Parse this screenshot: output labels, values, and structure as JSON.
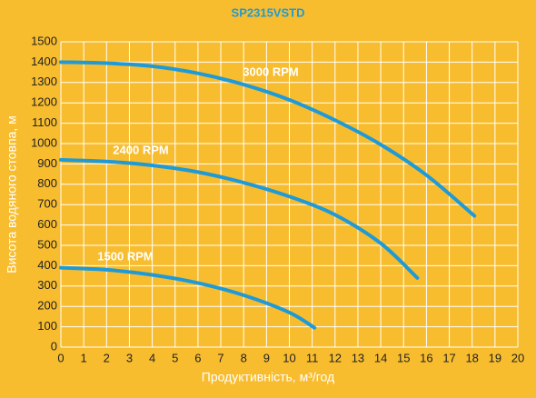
{
  "chart_data": {
    "type": "line",
    "title": "SP2315VSTD",
    "x_label": "Продуктивність, м³/год",
    "y_label": "Висота водяного стовпа, м",
    "xlim": [
      0,
      20
    ],
    "ylim": [
      0,
      1500
    ],
    "xticks": [
      0,
      1,
      2,
      3,
      4,
      5,
      6,
      7,
      8,
      9,
      10,
      11,
      12,
      13,
      14,
      15,
      16,
      17,
      18,
      19,
      20
    ],
    "yticks": [
      0,
      100,
      200,
      300,
      400,
      500,
      600,
      700,
      800,
      900,
      1000,
      1100,
      1200,
      1300,
      1400,
      1500
    ],
    "grid": true,
    "series": [
      {
        "name": "3000 RPM",
        "color": "#1f9ad6",
        "x": [
          0,
          2,
          4,
          6,
          8,
          10,
          12,
          14,
          16,
          18.1
        ],
        "values": [
          1400,
          1395,
          1380,
          1345,
          1290,
          1215,
          1115,
          995,
          845,
          645
        ]
      },
      {
        "name": "2400 RPM",
        "color": "#1f9ad6",
        "x": [
          0,
          2,
          4,
          6,
          8,
          10,
          12,
          14,
          15.6
        ],
        "values": [
          920,
          912,
          893,
          860,
          808,
          740,
          650,
          510,
          340
        ]
      },
      {
        "name": "1500 RPM",
        "color": "#1f9ad6",
        "x": [
          0,
          2,
          4,
          6,
          8,
          10,
          11.1
        ],
        "values": [
          390,
          380,
          355,
          315,
          255,
          170,
          95
        ]
      }
    ]
  }
}
